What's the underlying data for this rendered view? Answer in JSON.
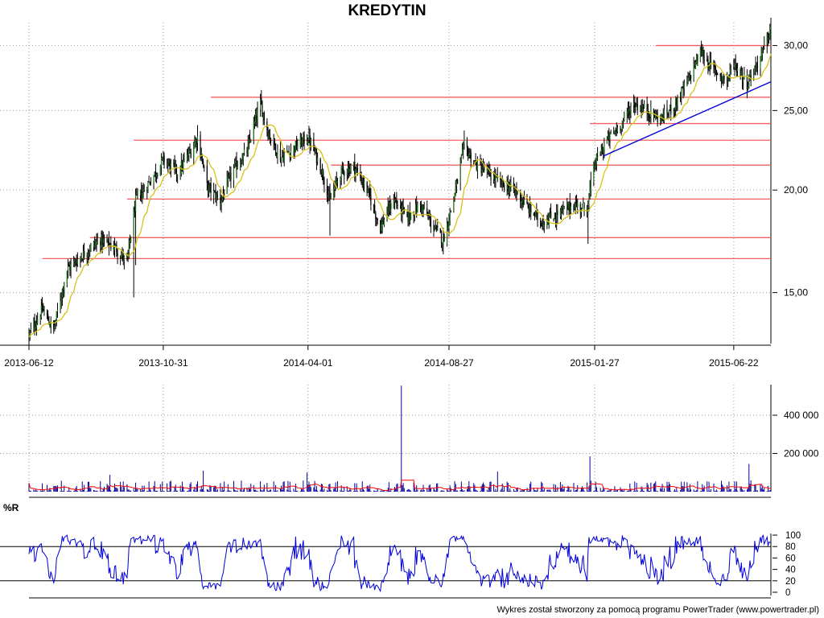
{
  "title": "KREDYTIN",
  "footer": "Wykres został stworzony za pomocą programu PowerTrader (www.powertrader.pl)",
  "colors": {
    "candle_up": "#1f7a1f",
    "candle_down": "#000000",
    "moving_average": "#d8c21a",
    "support_resistance": "#f06060",
    "trendline": "#0000dd",
    "volume": "#00009a",
    "volume_average": "#ff0000",
    "williams_r": "#0000dd"
  },
  "chart_data": [
    {
      "type": "line",
      "name": "price",
      "title": "KREDYTIN",
      "x_tick_labels": [
        "2013-06-12",
        "2013-10-31",
        "2014-04-01",
        "2014-08-27",
        "2015-01-27",
        "2015-06-22"
      ],
      "y_tick_labels": [
        "15,00",
        "20,00",
        "25,00",
        "30,00"
      ],
      "y_ticks": [
        15,
        20,
        25,
        30
      ],
      "y_range": [
        13,
        32
      ],
      "y_scale": "log",
      "grid": true,
      "x_range": [
        "2013-06-12",
        "2015-07-31"
      ],
      "close_anchors": [
        [
          "2013-06-12",
          13.3
        ],
        [
          "2013-06-26",
          14.3
        ],
        [
          "2013-07-08",
          13.5
        ],
        [
          "2013-07-22",
          16.0
        ],
        [
          "2013-08-08",
          16.7
        ],
        [
          "2013-08-26",
          17.4
        ],
        [
          "2013-09-11",
          17.0
        ],
        [
          "2013-09-23",
          16.3
        ],
        [
          "2013-10-02",
          19.4
        ],
        [
          "2013-10-11",
          20.0
        ],
        [
          "2013-10-24",
          21.1
        ],
        [
          "2013-10-31",
          21.8
        ],
        [
          "2013-11-15",
          21.0
        ],
        [
          "2013-11-29",
          22.3
        ],
        [
          "2013-12-06",
          23.2
        ],
        [
          "2013-12-16",
          20.2
        ],
        [
          "2013-12-30",
          19.4
        ],
        [
          "2014-01-13",
          21.2
        ],
        [
          "2014-01-27",
          22.3
        ],
        [
          "2014-02-10",
          25.5
        ],
        [
          "2014-02-18",
          23.5
        ],
        [
          "2014-03-03",
          21.9
        ],
        [
          "2014-03-17",
          22.5
        ],
        [
          "2014-04-01",
          23.2
        ],
        [
          "2014-04-15",
          21.2
        ],
        [
          "2014-04-24",
          19.4
        ],
        [
          "2014-05-05",
          21.0
        ],
        [
          "2014-05-19",
          21.4
        ],
        [
          "2014-06-02",
          20.0
        ],
        [
          "2014-06-16",
          18.0
        ],
        [
          "2014-06-30",
          19.5
        ],
        [
          "2014-07-14",
          18.5
        ],
        [
          "2014-07-28",
          19.2
        ],
        [
          "2014-08-11",
          18.0
        ],
        [
          "2014-08-21",
          17.4
        ],
        [
          "2014-08-27",
          18.5
        ],
        [
          "2014-09-05",
          20.5
        ],
        [
          "2014-09-12",
          22.7
        ],
        [
          "2014-09-22",
          21.6
        ],
        [
          "2014-10-06",
          21.0
        ],
        [
          "2014-10-20",
          20.4
        ],
        [
          "2014-11-04",
          20.0
        ],
        [
          "2014-11-18",
          19.0
        ],
        [
          "2014-12-02",
          18.3
        ],
        [
          "2014-12-16",
          18.6
        ],
        [
          "2015-01-05",
          19.2
        ],
        [
          "2015-01-19",
          19.0
        ],
        [
          "2015-01-27",
          21.5
        ],
        [
          "2015-02-09",
          23.0
        ],
        [
          "2015-02-23",
          24.0
        ],
        [
          "2015-03-09",
          25.5
        ],
        [
          "2015-03-23",
          25.0
        ],
        [
          "2015-04-06",
          24.4
        ],
        [
          "2015-04-20",
          25.3
        ],
        [
          "2015-05-04",
          27.0
        ],
        [
          "2015-05-18",
          29.5
        ],
        [
          "2015-06-01",
          28.0
        ],
        [
          "2015-06-15",
          27.2
        ],
        [
          "2015-06-22",
          28.6
        ],
        [
          "2015-07-06",
          27.0
        ],
        [
          "2015-07-20",
          29.0
        ],
        [
          "2015-07-27",
          30.5
        ],
        [
          "2015-07-31",
          31.5
        ]
      ],
      "horizontal_levels": [
        {
          "y": 30.0,
          "from": "2015-04-01",
          "to": "2015-07-31"
        },
        {
          "y": 25.95,
          "from": "2013-12-20",
          "to": "2015-07-31"
        },
        {
          "y": 24.1,
          "from": "2015-01-22",
          "to": "2015-07-31"
        },
        {
          "y": 23.0,
          "from": "2013-09-30",
          "to": "2015-07-31"
        },
        {
          "y": 21.45,
          "from": "2014-04-25",
          "to": "2015-07-31"
        },
        {
          "y": 19.5,
          "from": "2013-09-23",
          "to": "2015-07-31"
        },
        {
          "y": 17.5,
          "from": "2013-08-15",
          "to": "2015-07-31"
        },
        {
          "y": 16.5,
          "from": "2013-06-26",
          "to": "2015-07-31"
        }
      ],
      "trendline": {
        "from": [
          "2015-02-05",
          22.0
        ],
        "to": [
          "2015-07-31",
          27.1
        ]
      }
    },
    {
      "type": "bar",
      "name": "volume",
      "y_tick_labels": [
        "200 000",
        "400 000"
      ],
      "y_ticks": [
        200000,
        400000
      ],
      "y_range": [
        0,
        560000
      ],
      "grid": true,
      "spikes": [
        {
          "date": "2014-07-08",
          "value": 555000
        },
        {
          "date": "2015-01-22",
          "value": 185000
        },
        {
          "date": "2015-07-08",
          "value": 145000
        },
        {
          "date": "2013-12-12",
          "value": 110000
        },
        {
          "date": "2013-09-05",
          "value": 88000
        },
        {
          "date": "2014-03-31",
          "value": 100000
        },
        {
          "date": "2014-10-17",
          "value": 105000
        }
      ],
      "typical_volume": 25000,
      "average_level": 12000
    },
    {
      "type": "line",
      "name": "%R",
      "label": "%R",
      "y_tick_labels": [
        "0",
        "20",
        "40",
        "60",
        "80",
        "100"
      ],
      "y_ticks": [
        0,
        20,
        40,
        60,
        80,
        100
      ],
      "y_range": [
        0,
        100
      ],
      "reference_lines": [
        20,
        80
      ],
      "grid": false
    }
  ]
}
